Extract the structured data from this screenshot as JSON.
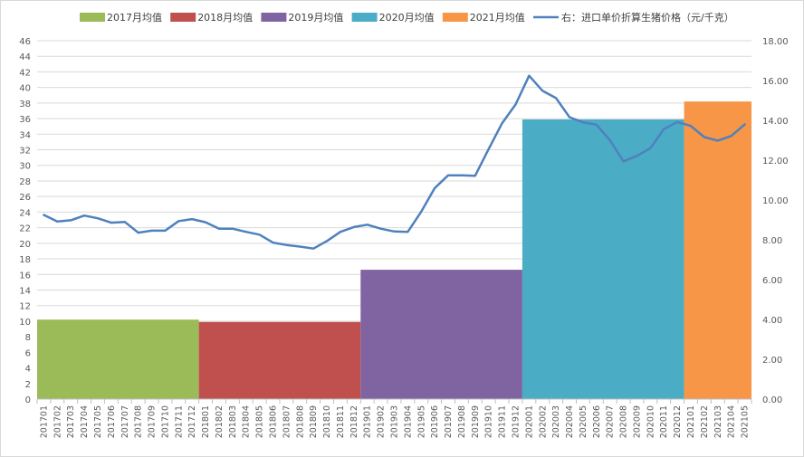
{
  "chart_data": {
    "type": "bar",
    "title": "",
    "xlabel": "",
    "ylabel": "",
    "categories": [
      "201701",
      "201702",
      "201703",
      "201704",
      "201705",
      "201706",
      "201707",
      "201708",
      "201709",
      "201710",
      "201711",
      "201712",
      "201801",
      "201802",
      "201803",
      "201804",
      "201805",
      "201806",
      "201807",
      "201808",
      "201809",
      "201810",
      "201811",
      "201812",
      "201901",
      "201902",
      "201903",
      "201904",
      "201905",
      "201906",
      "201907",
      "201908",
      "201909",
      "201910",
      "201911",
      "201912",
      "202001",
      "202002",
      "202003",
      "202004",
      "202005",
      "202006",
      "202007",
      "202008",
      "202009",
      "202010",
      "202011",
      "202012",
      "202101",
      "202102",
      "202103",
      "202104",
      "202105"
    ],
    "legend_position": "top",
    "grid": true,
    "y_left": {
      "min": 0,
      "max": 46,
      "step": 2,
      "ticks": [
        "0",
        "2",
        "4",
        "6",
        "8",
        "10",
        "12",
        "14",
        "16",
        "18",
        "20",
        "22",
        "24",
        "26",
        "28",
        "30",
        "32",
        "34",
        "36",
        "38",
        "40",
        "42",
        "44",
        "46"
      ]
    },
    "y_right": {
      "min": 0,
      "max": 18,
      "step": 2,
      "ticks": [
        "0.00",
        "2.00",
        "4.00",
        "6.00",
        "8.00",
        "10.00",
        "12.00",
        "14.00",
        "16.00",
        "18.00"
      ]
    },
    "bar_series": [
      {
        "name": "2017月均值",
        "start": 0,
        "end": 11,
        "value": 10.2,
        "color": "#9bbb59"
      },
      {
        "name": "2018月均值",
        "start": 12,
        "end": 23,
        "value": 9.9,
        "color": "#c0504d"
      },
      {
        "name": "2019月均值",
        "start": 24,
        "end": 35,
        "value": 16.6,
        "color": "#8064a2"
      },
      {
        "name": "2020月均值",
        "start": 36,
        "end": 47,
        "value": 35.9,
        "color": "#4bacc6"
      },
      {
        "name": "2021月均值",
        "start": 48,
        "end": 52,
        "value": 38.2,
        "color": "#f79646"
      }
    ],
    "line_series": {
      "name": "右：进口单价折算生猪价格（元/千克）",
      "color": "#4f81bd",
      "axis": "right",
      "values": [
        9.25,
        8.92,
        8.98,
        9.22,
        9.08,
        8.86,
        8.9,
        8.36,
        8.46,
        8.46,
        8.94,
        9.04,
        8.88,
        8.56,
        8.56,
        8.4,
        8.26,
        7.86,
        7.74,
        7.66,
        7.56,
        7.94,
        8.4,
        8.64,
        8.76,
        8.56,
        8.42,
        8.4,
        9.42,
        10.6,
        11.24,
        11.24,
        11.22,
        12.56,
        13.86,
        14.8,
        16.24,
        15.48,
        15.12,
        14.16,
        13.9,
        13.78,
        13.0,
        11.94,
        12.22,
        12.6,
        13.56,
        13.92,
        13.72,
        13.16,
        12.98,
        13.22,
        13.8
      ]
    }
  }
}
